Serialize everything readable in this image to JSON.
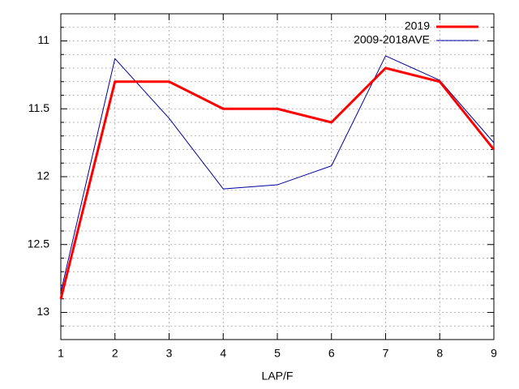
{
  "chart_data": {
    "type": "line",
    "x": [
      1,
      2,
      3,
      4,
      5,
      6,
      7,
      8,
      9
    ],
    "series": [
      {
        "name": "2019",
        "color": "#ff0000",
        "width": 3,
        "values": [
          12.9,
          11.3,
          11.3,
          11.5,
          11.5,
          11.6,
          11.2,
          11.3,
          11.8
        ]
      },
      {
        "name": "2009-2018AVE",
        "color": "#0000a0",
        "width": 1,
        "values": [
          12.85,
          11.13,
          11.57,
          12.09,
          12.06,
          11.92,
          11.11,
          11.29,
          11.75
        ]
      }
    ],
    "xlabel": "LAP/F",
    "xlim": [
      1,
      9
    ],
    "xticks": [
      1,
      2,
      3,
      4,
      5,
      6,
      7,
      8,
      9
    ],
    "ylim": [
      10.8,
      13.2
    ],
    "y_reversed": true,
    "yticks": [
      11,
      11.5,
      12,
      12.5,
      13
    ],
    "y_minor_subdivisions": 5,
    "grid": true,
    "legend": "top-right"
  }
}
